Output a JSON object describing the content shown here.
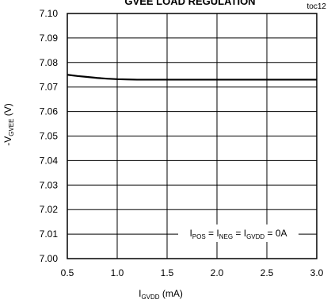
{
  "chart_data": {
    "type": "line",
    "title": "GVEE LOAD REGULATION",
    "figure_id": "toc12",
    "xlabel": {
      "main": "I",
      "sub": "GVDD",
      "unit": " (mA)"
    },
    "ylabel": {
      "prefix": "-V",
      "sub": "GVEE",
      "unit": " (V)"
    },
    "xlim": [
      0.5,
      3.0
    ],
    "ylim": [
      7.0,
      7.1
    ],
    "x_ticks": [
      "0.5",
      "1.0",
      "1.5",
      "2.0",
      "2.5",
      "3.0"
    ],
    "y_ticks": [
      "7.00",
      "7.01",
      "7.02",
      "7.03",
      "7.04",
      "7.05",
      "7.06",
      "7.07",
      "7.08",
      "7.09",
      "7.10"
    ],
    "grid": true,
    "annotation": {
      "parts": [
        {
          "t": "I",
          "sub": "POS"
        },
        {
          "t": " = I",
          "sub": "NEG"
        },
        {
          "t": " = I",
          "sub": "GVDD"
        },
        {
          "t": " = 0A",
          "sub": ""
        }
      ]
    },
    "series": [
      {
        "x": [
          0.5,
          0.6,
          0.7,
          0.8,
          0.9,
          1.0,
          1.1,
          1.2,
          1.25,
          1.3,
          1.4,
          1.5,
          1.75,
          2.0,
          2.25,
          2.5,
          2.75,
          3.0
        ],
        "values": [
          7.075,
          7.0745,
          7.0741,
          7.0737,
          7.0734,
          7.0732,
          7.0731,
          7.073,
          7.073,
          7.073,
          7.073,
          7.073,
          7.073,
          7.073,
          7.073,
          7.073,
          7.073,
          7.073
        ]
      }
    ]
  }
}
